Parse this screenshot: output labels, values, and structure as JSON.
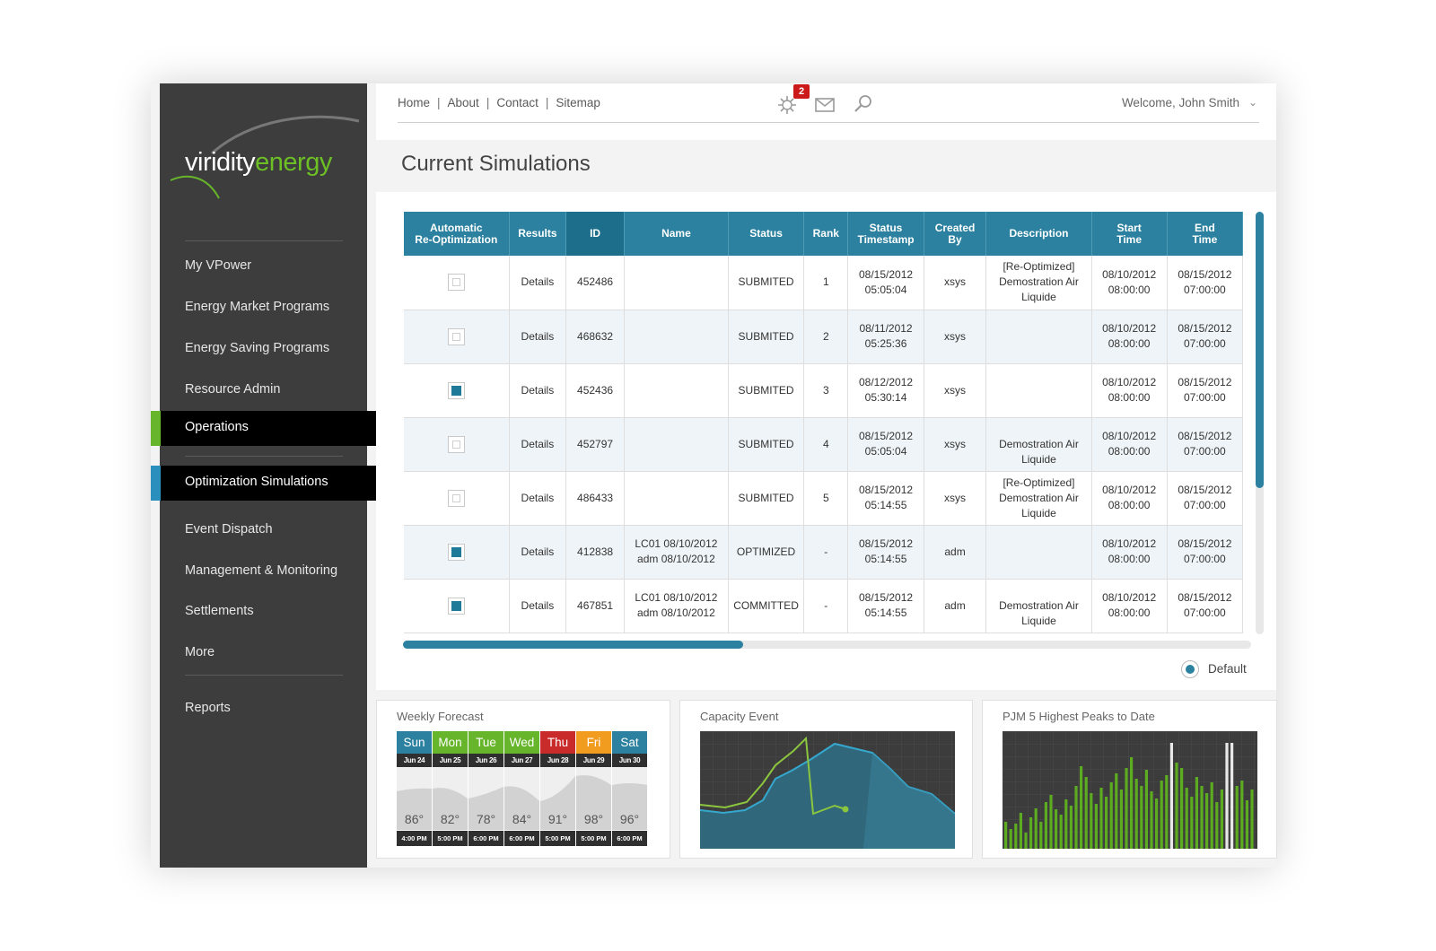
{
  "brand": {
    "logo_part1": "viridity",
    "logo_part2": "energy"
  },
  "sidebar": {
    "items": [
      {
        "label": "My VPower"
      },
      {
        "label": "Energy Market Programs"
      },
      {
        "label": "Energy Saving Programs"
      },
      {
        "label": "Resource Admin"
      }
    ],
    "active": {
      "label": "Operations"
    },
    "selected_sub": {
      "label": "Optimization Simulations"
    },
    "sub_items": [
      {
        "label": "Event Dispatch"
      },
      {
        "label": "Management & Monitoring"
      },
      {
        "label": "Settlements"
      },
      {
        "label": "More"
      }
    ],
    "reports": {
      "label": "Reports"
    }
  },
  "topnav": {
    "links": [
      "Home",
      "About",
      "Contact",
      "Sitemap"
    ],
    "notifications_count": "2",
    "welcome": "Welcome, John Smith",
    "icons": {
      "notifications": "gear-burst-icon",
      "mail": "mail-icon",
      "search": "search-icon",
      "chevron": "chevron-down-icon"
    }
  },
  "page": {
    "title": "Current Simulations"
  },
  "table": {
    "headers": [
      {
        "line1": "Automatic",
        "line2": "Re-Optimization"
      },
      {
        "line1": "Results",
        "line2": ""
      },
      {
        "line1": "ID",
        "line2": ""
      },
      {
        "line1": "Name",
        "line2": ""
      },
      {
        "line1": "Status",
        "line2": ""
      },
      {
        "line1": "Rank",
        "line2": ""
      },
      {
        "line1": "Status",
        "line2": "Timestamp"
      },
      {
        "line1": "Created",
        "line2": "By"
      },
      {
        "line1": "Description",
        "line2": ""
      },
      {
        "line1": "Start",
        "line2": "Time"
      },
      {
        "line1": "End",
        "line2": "Time"
      }
    ],
    "rows": [
      {
        "checked": false,
        "results": "Details",
        "id": "452486",
        "name1": "",
        "name2": "",
        "status": "SUBMITED",
        "rank": "1",
        "ts1": "08/15/2012",
        "ts2": "05:05:04",
        "created": "xsys",
        "d1": "[Re-Optimized]",
        "d2": "Demostration Air",
        "d3": "Liquide",
        "s1": "08/10/2012",
        "s2": "08:00:00",
        "e1": "08/15/2012",
        "e2": "07:00:00"
      },
      {
        "checked": false,
        "results": "Details",
        "id": "468632",
        "name1": "",
        "name2": "",
        "status": "SUBMITED",
        "rank": "2",
        "ts1": "08/11/2012",
        "ts2": "05:25:36",
        "created": "xsys",
        "d1": "",
        "d2": "",
        "d3": "",
        "s1": "08/10/2012",
        "s2": "08:00:00",
        "e1": "08/15/2012",
        "e2": "07:00:00"
      },
      {
        "checked": true,
        "results": "Details",
        "id": "452436",
        "name1": "",
        "name2": "",
        "status": "SUBMITED",
        "rank": "3",
        "ts1": "08/12/2012",
        "ts2": "05:30:14",
        "created": "xsys",
        "d1": "",
        "d2": "",
        "d3": "",
        "s1": "08/10/2012",
        "s2": "08:00:00",
        "e1": "08/15/2012",
        "e2": "07:00:00"
      },
      {
        "checked": false,
        "results": "Details",
        "id": "452797",
        "name1": "",
        "name2": "",
        "status": "SUBMITED",
        "rank": "4",
        "ts1": "08/15/2012",
        "ts2": "05:05:04",
        "created": "xsys",
        "d1": "",
        "d2": "Demostration Air",
        "d3": "Liquide",
        "s1": "08/10/2012",
        "s2": "08:00:00",
        "e1": "08/15/2012",
        "e2": "07:00:00"
      },
      {
        "checked": false,
        "results": "Details",
        "id": "486433",
        "name1": "",
        "name2": "",
        "status": "SUBMITED",
        "rank": "5",
        "ts1": "08/15/2012",
        "ts2": "05:14:55",
        "created": "xsys",
        "d1": "[Re-Optimized]",
        "d2": "Demostration Air",
        "d3": "Liquide",
        "s1": "08/10/2012",
        "s2": "08:00:00",
        "e1": "08/15/2012",
        "e2": "07:00:00"
      },
      {
        "checked": true,
        "results": "Details",
        "id": "412838",
        "name1": "LC01 08/10/2012",
        "name2": "adm 08/10/2012",
        "status": "OPTIMIZED",
        "rank": "-",
        "ts1": "08/15/2012",
        "ts2": "05:14:55",
        "created": "adm",
        "d1": "",
        "d2": "",
        "d3": "",
        "s1": "08/10/2012",
        "s2": "08:00:00",
        "e1": "08/15/2012",
        "e2": "07:00:00"
      },
      {
        "checked": true,
        "results": "Details",
        "id": "467851",
        "name1": "LC01 08/10/2012",
        "name2": "adm 08/10/2012",
        "status": "COMMITTED",
        "rank": "-",
        "ts1": "08/15/2012",
        "ts2": "05:14:55",
        "created": "adm",
        "d1": "",
        "d2": "Demostration Air",
        "d3": "Liquide",
        "s1": "08/10/2012",
        "s2": "08:00:00",
        "e1": "08/15/2012",
        "e2": "07:00:00"
      }
    ],
    "scroll": {
      "horizontal_fraction": 0.4,
      "vertical_fraction": 0.65
    }
  },
  "radio": {
    "label": "Default",
    "selected": true
  },
  "widgets": {
    "forecast": {
      "title": "Weekly Forecast",
      "days": [
        {
          "name": "Sun",
          "date": "Jun 24",
          "temp": "86°",
          "time": "4:00 PM",
          "color": "#2b819f"
        },
        {
          "name": "Mon",
          "date": "Jun 25",
          "temp": "82°",
          "time": "5:00 PM",
          "color": "#67b52a"
        },
        {
          "name": "Tue",
          "date": "Jun 26",
          "temp": "78°",
          "time": "6:00 PM",
          "color": "#67b52a"
        },
        {
          "name": "Wed",
          "date": "Jun 27",
          "temp": "84°",
          "time": "6:00 PM",
          "color": "#67b52a"
        },
        {
          "name": "Thu",
          "date": "Jun 28",
          "temp": "91°",
          "time": "5:00 PM",
          "color": "#c92a2a"
        },
        {
          "name": "Fri",
          "date": "Jun 29",
          "temp": "98°",
          "time": "5:00 PM",
          "color": "#f29c1f"
        },
        {
          "name": "Sat",
          "date": "Jun 30",
          "temp": "96°",
          "time": "6:00 PM",
          "color": "#2b819f"
        }
      ]
    },
    "capacity": {
      "title": "Capacity Event"
    },
    "peaks": {
      "title": "PJM 5 Highest Peaks to Date"
    }
  }
}
